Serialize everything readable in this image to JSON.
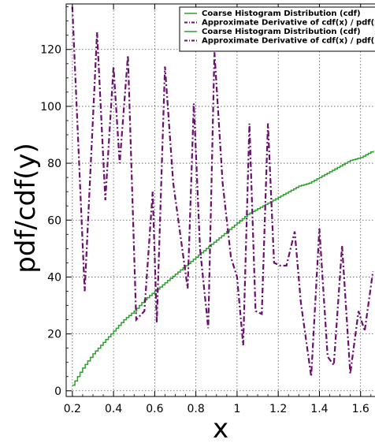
{
  "chart_data": {
    "type": "line",
    "title": "",
    "xlabel": "x",
    "ylabel": "pdf/cdf(y)",
    "xlim": [
      0.17,
      1.67
    ],
    "ylim": [
      -2,
      136
    ],
    "xticks": [
      0.2,
      0.4,
      0.6,
      0.8,
      1.0,
      1.2,
      1.4,
      1.6
    ],
    "xtick_labels": [
      "0.2",
      "0.4",
      "0.6",
      "0.8",
      "1",
      "1.2",
      "1.4",
      "1.6"
    ],
    "yticks": [
      0,
      20,
      40,
      60,
      80,
      100,
      120
    ],
    "ytick_labels": [
      "0",
      "20",
      "40",
      "60",
      "80",
      "100",
      "120"
    ],
    "grid": true,
    "legend_position": "top-right",
    "legend": [
      {
        "label": "Coarse Histogram Distribution (cdf)",
        "color": "#2ca02c",
        "style": "solid"
      },
      {
        "label": "Approximate Derivative of cdf(x) / pdf(x)",
        "color": "#6a0f6e",
        "style": "dashdot"
      },
      {
        "label": "Coarse Histogram Distribution (cdf)",
        "color": "#2ca02c",
        "style": "solid"
      },
      {
        "label": "Approximate Derivative of cdf(x) / pdf(x)",
        "color": "#6a0f6e",
        "style": "dashdot"
      }
    ],
    "series": [
      {
        "name": "Coarse Histogram Distribution (cdf)",
        "color": "#2ca02c",
        "style": "step",
        "x": [
          0.2,
          0.25,
          0.3,
          0.35,
          0.4,
          0.45,
          0.5,
          0.55,
          0.6,
          0.65,
          0.7,
          0.75,
          0.8,
          0.85,
          0.9,
          0.95,
          1.0,
          1.05,
          1.1,
          1.15,
          1.2,
          1.25,
          1.3,
          1.35,
          1.4,
          1.45,
          1.5,
          1.55,
          1.6,
          1.65,
          1.67
        ],
        "y": [
          2,
          8,
          13,
          17,
          21,
          25,
          28,
          32,
          35,
          38,
          41,
          44,
          47,
          50,
          53,
          56,
          59,
          62,
          64,
          66,
          68,
          70,
          72,
          73,
          75,
          77,
          79,
          81,
          82,
          84,
          84.5
        ]
      },
      {
        "name": "Approximate Derivative of cdf(x) / pdf(x)",
        "color": "#6a0f6e",
        "style": "dashdot",
        "x": [
          0.2,
          0.26,
          0.32,
          0.36,
          0.4,
          0.43,
          0.47,
          0.51,
          0.55,
          0.59,
          0.61,
          0.65,
          0.69,
          0.73,
          0.76,
          0.79,
          0.82,
          0.86,
          0.89,
          0.93,
          0.97,
          1.0,
          1.03,
          1.06,
          1.09,
          1.12,
          1.15,
          1.18,
          1.21,
          1.24,
          1.28,
          1.31,
          1.36,
          1.4,
          1.44,
          1.47,
          1.51,
          1.55,
          1.59,
          1.62,
          1.66
        ],
        "y": [
          135,
          35,
          126,
          67,
          114,
          80,
          118,
          25,
          28,
          70,
          24,
          114,
          73,
          52,
          36,
          101,
          50,
          22,
          119,
          73,
          47,
          40,
          16,
          94,
          28,
          27,
          94,
          45,
          44,
          44,
          56,
          31,
          5,
          57,
          12,
          9,
          51,
          6,
          28,
          21,
          42
        ]
      }
    ]
  }
}
